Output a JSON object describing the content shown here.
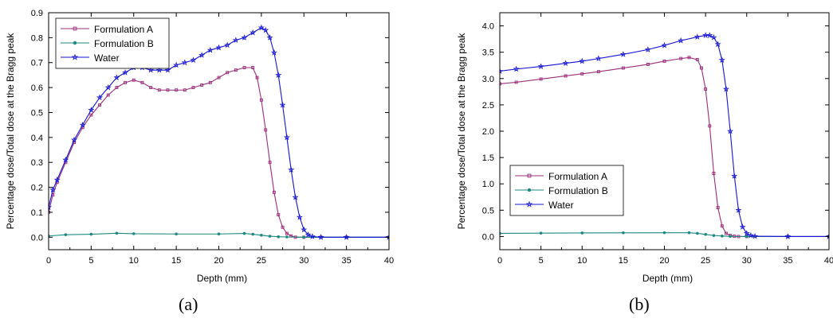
{
  "captions": [
    "(a)",
    "(b)"
  ],
  "chart_data": [
    {
      "type": "line",
      "title": "",
      "xlabel": "Depth (mm)",
      "ylabel": "Percentage dose/Total dose at the Bragg peak",
      "xlim": [
        0,
        40
      ],
      "ylim": [
        -0.05,
        0.9
      ],
      "xticks": [
        0,
        5,
        10,
        15,
        20,
        25,
        30,
        35,
        40
      ],
      "yticks": [
        0.0,
        0.1,
        0.2,
        0.3,
        0.4,
        0.5,
        0.6,
        0.7,
        0.8,
        0.9
      ],
      "ytick_labels": [
        "0.0",
        "0.1",
        "0.2",
        "0.3",
        "0.4",
        "0.5",
        "0.6",
        "0.7",
        "0.8",
        "0.9"
      ],
      "grid": false,
      "legend_position": "top-left",
      "series": [
        {
          "name": "Formulation A",
          "color": "#9b2d7a",
          "marker": "square",
          "x": [
            0,
            0.5,
            1,
            2,
            3,
            4,
            5,
            6,
            7,
            8,
            9,
            10,
            11,
            12,
            13,
            14,
            15,
            16,
            17,
            18,
            19,
            20,
            21,
            22,
            23,
            24,
            24.5,
            25,
            25.5,
            26,
            26.5,
            27,
            27.5,
            28,
            28.5,
            29,
            30,
            32,
            35,
            40
          ],
          "y": [
            0.1,
            0.17,
            0.22,
            0.3,
            0.38,
            0.44,
            0.49,
            0.53,
            0.57,
            0.6,
            0.62,
            0.63,
            0.62,
            0.6,
            0.59,
            0.59,
            0.59,
            0.59,
            0.6,
            0.61,
            0.62,
            0.64,
            0.66,
            0.67,
            0.68,
            0.68,
            0.64,
            0.55,
            0.43,
            0.3,
            0.18,
            0.09,
            0.04,
            0.015,
            0.005,
            0,
            0,
            0,
            0,
            0
          ]
        },
        {
          "name": "Formulation B",
          "color": "#1a8a82",
          "marker": "circle",
          "x": [
            0,
            2,
            5,
            8,
            10,
            15,
            20,
            23,
            24,
            25,
            26,
            27,
            28,
            30,
            35,
            40
          ],
          "y": [
            0.005,
            0.01,
            0.012,
            0.016,
            0.014,
            0.013,
            0.013,
            0.015,
            0.012,
            0.008,
            0.004,
            0.002,
            0.001,
            0,
            0,
            0
          ]
        },
        {
          "name": "Water",
          "color": "#1414d2",
          "marker": "star",
          "x": [
            0,
            0.5,
            1,
            2,
            3,
            4,
            5,
            6,
            7,
            8,
            9,
            10,
            11,
            12,
            13,
            14,
            15,
            16,
            17,
            18,
            19,
            20,
            21,
            22,
            23,
            24,
            25,
            25.5,
            26,
            26.5,
            27,
            27.5,
            28,
            28.5,
            29,
            29.5,
            30,
            30.5,
            31,
            32,
            35,
            40
          ],
          "y": [
            0.12,
            0.19,
            0.23,
            0.31,
            0.39,
            0.45,
            0.51,
            0.56,
            0.6,
            0.64,
            0.66,
            0.68,
            0.68,
            0.67,
            0.67,
            0.67,
            0.69,
            0.7,
            0.71,
            0.73,
            0.75,
            0.76,
            0.77,
            0.79,
            0.8,
            0.82,
            0.84,
            0.83,
            0.8,
            0.74,
            0.65,
            0.53,
            0.4,
            0.27,
            0.16,
            0.08,
            0.03,
            0.01,
            0.003,
            0,
            0,
            0
          ]
        }
      ]
    },
    {
      "type": "line",
      "title": "",
      "xlabel": "Depth (mm)",
      "ylabel": "Percentage dose/Total dose at the Bragg peak",
      "xlim": [
        0,
        40
      ],
      "ylim": [
        -0.25,
        4.25
      ],
      "xticks": [
        0,
        5,
        10,
        15,
        20,
        25,
        30,
        35,
        40
      ],
      "yticks": [
        0.0,
        0.5,
        1.0,
        1.5,
        2.0,
        2.5,
        3.0,
        3.5,
        4.0
      ],
      "ytick_labels": [
        "0.0",
        "0.5",
        "1.0",
        "1.5",
        "2.0",
        "2.5",
        "3.0",
        "3.5",
        "4.0"
      ],
      "grid": false,
      "legend_position": "bottom-left",
      "series": [
        {
          "name": "Formulation A",
          "color": "#9b2d7a",
          "marker": "square",
          "x": [
            0,
            2,
            5,
            8,
            10,
            12,
            15,
            18,
            20,
            22,
            23,
            24,
            24.5,
            25,
            25.5,
            26,
            26.5,
            27,
            27.5,
            28,
            28.5,
            29,
            30,
            35,
            40
          ],
          "y": [
            2.9,
            2.93,
            2.99,
            3.05,
            3.09,
            3.13,
            3.2,
            3.27,
            3.33,
            3.38,
            3.4,
            3.36,
            3.2,
            2.8,
            2.1,
            1.2,
            0.55,
            0.2,
            0.06,
            0.02,
            0.005,
            0,
            0,
            0,
            0
          ]
        },
        {
          "name": "Formulation B",
          "color": "#1a8a82",
          "marker": "circle",
          "x": [
            0,
            5,
            10,
            15,
            20,
            23,
            24,
            25,
            26,
            27,
            28,
            30,
            35,
            40
          ],
          "y": [
            0.06,
            0.065,
            0.068,
            0.07,
            0.072,
            0.072,
            0.06,
            0.04,
            0.02,
            0.01,
            0.003,
            0,
            0,
            0
          ]
        },
        {
          "name": "Water",
          "color": "#1414d2",
          "marker": "star",
          "x": [
            0,
            2,
            5,
            8,
            10,
            12,
            15,
            18,
            20,
            22,
            24,
            25,
            25.5,
            26,
            26.5,
            27,
            27.5,
            28,
            28.5,
            29,
            29.5,
            30,
            30.5,
            31,
            35,
            40
          ],
          "y": [
            3.14,
            3.18,
            3.23,
            3.29,
            3.33,
            3.38,
            3.46,
            3.55,
            3.63,
            3.72,
            3.79,
            3.82,
            3.82,
            3.78,
            3.65,
            3.35,
            2.8,
            2.0,
            1.15,
            0.5,
            0.18,
            0.06,
            0.02,
            0.005,
            0,
            0
          ]
        }
      ]
    }
  ]
}
